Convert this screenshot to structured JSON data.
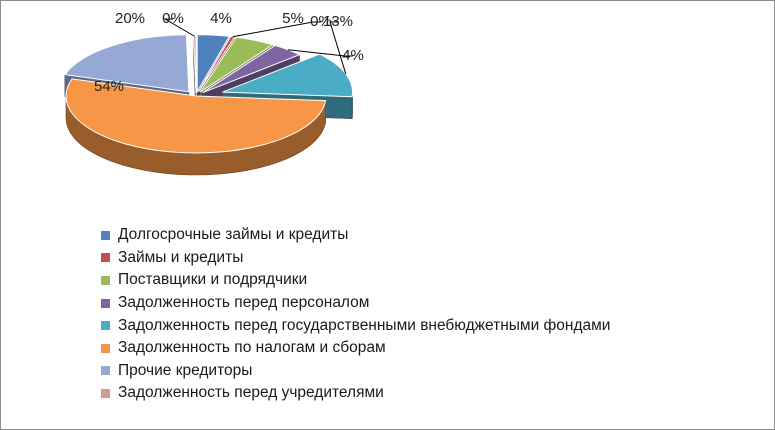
{
  "chart_data": {
    "type": "pie",
    "title": "",
    "style": "3d-exploded",
    "legend_position": "bottom",
    "series": [
      {
        "name": "Долгосрочные займы и кредиты",
        "value": 4,
        "label": "4%",
        "color": "#4F81BD"
      },
      {
        "name": "Займы и кредиты",
        "value": 0.5,
        "label": "0%",
        "color": "#C0504D"
      },
      {
        "name": "Поставщики и подрядчики",
        "value": 5,
        "label": "5%",
        "color": "#9BBB59"
      },
      {
        "name": "Задолженность перед персоналом",
        "value": 4,
        "label": "4%",
        "color": "#8064A2"
      },
      {
        "name": "Задолженность перед государственными внебюджетными фондами",
        "value": 13,
        "label": "13%",
        "color": "#4BACC6"
      },
      {
        "name": "Задолженность по налогам и сборам",
        "value": 54,
        "label": "54%",
        "color": "#F79646"
      },
      {
        "name": "Прочие кредиторы",
        "value": 20,
        "label": "20%",
        "color": "#95A8D6"
      },
      {
        "name": "Задолженность перед учредителями",
        "value": 0.3,
        "label": "0%",
        "color": "#D99694"
      }
    ]
  }
}
